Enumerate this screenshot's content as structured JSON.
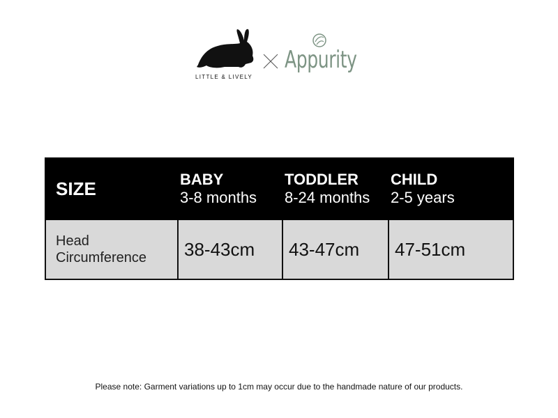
{
  "brand": {
    "left_logo_text": "LITTLE & LIVELY",
    "separator": "×",
    "right_logo_text": "Appurity",
    "right_logo_color": "#7d9484"
  },
  "table": {
    "header": {
      "size_label": "SIZE",
      "columns": [
        {
          "name": "BABY",
          "range": "3-8 months"
        },
        {
          "name": "TODDLER",
          "range": "8-24 months"
        },
        {
          "name": "CHILD",
          "range": "2-5 years"
        }
      ]
    },
    "rows": [
      {
        "label_line1": "Head",
        "label_line2": "Circumference",
        "values": [
          "38-43cm",
          "43-47cm",
          "47-51cm"
        ]
      }
    ],
    "header_bg": "#000000",
    "body_bg": "#d9d9d9"
  },
  "note": "Please note: Garment variations up to 1cm may occur due to the handmade nature of our products."
}
